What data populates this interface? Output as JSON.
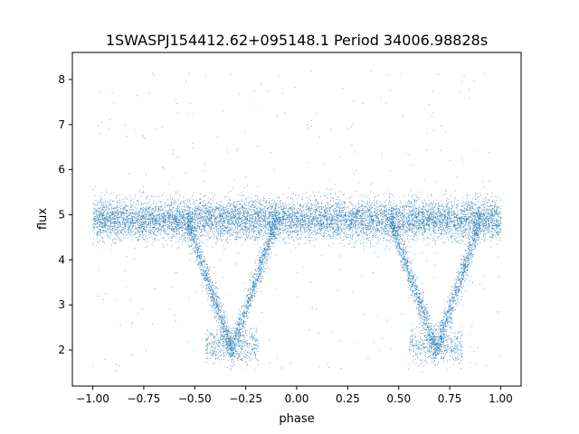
{
  "chart_data": {
    "type": "scatter",
    "title": "1SWASPJ154412.62+095148.1 Period 34006.98828s",
    "xlabel": "phase",
    "ylabel": "flux",
    "xlim": [
      -1.1,
      1.1
    ],
    "ylim": [
      1.2,
      8.6
    ],
    "x_ticks": [
      -1.0,
      -0.75,
      -0.5,
      -0.25,
      0.0,
      0.25,
      0.5,
      0.75,
      1.0
    ],
    "x_tick_labels": [
      "−1.00",
      "−0.75",
      "−0.50",
      "−0.25",
      "0.00",
      "0.25",
      "0.50",
      "0.75",
      "1.00"
    ],
    "y_ticks": [
      2,
      3,
      4,
      5,
      6,
      7,
      8
    ],
    "y_tick_labels": [
      "2",
      "3",
      "4",
      "5",
      "6",
      "7",
      "8"
    ],
    "grid": false,
    "marker_color": "#1f77b4",
    "x_range": [
      -1.0,
      1.0
    ],
    "baseline_flux": 4.9,
    "eclipse_centers": [
      -0.32,
      0.68
    ],
    "eclipse_min_flux": 2.0,
    "eclipse_half_width": 0.22,
    "scatter_outlier_range": [
      1.5,
      8.2
    ]
  }
}
